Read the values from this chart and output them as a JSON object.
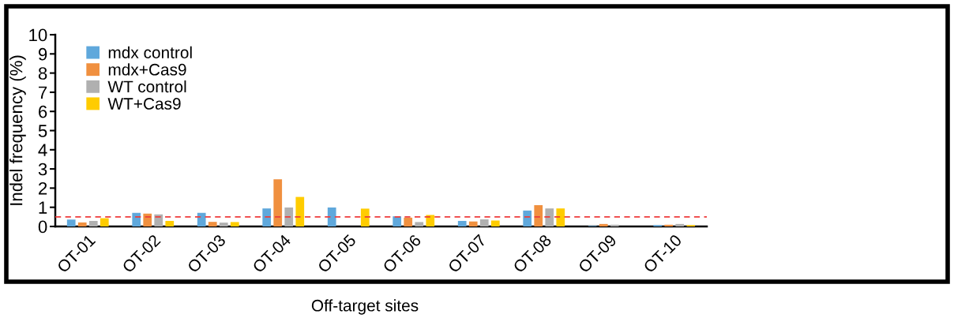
{
  "chart_data": {
    "type": "bar",
    "xlabel": "Off-target sites",
    "ylabel": "Indel frequency (%)",
    "categories": [
      "OT-01",
      "OT-02",
      "OT-03",
      "OT-04",
      "OT-05",
      "OT-06",
      "OT-07",
      "OT-08",
      "OT-09",
      "OT-10"
    ],
    "series": [
      {
        "name": "mdx control",
        "color": "#5fa8dc",
        "values": [
          0.36,
          0.71,
          0.71,
          0.94,
          0.99,
          0.53,
          0.29,
          0.83,
          0.03,
          0.07
        ]
      },
      {
        "name": "mdx+Cas9",
        "color": "#f0903f",
        "values": [
          0.21,
          0.67,
          0.24,
          2.46,
          0,
          0.46,
          0.26,
          1.11,
          0.13,
          0.09
        ]
      },
      {
        "name": "WT control",
        "color": "#b0b0b0",
        "values": [
          0.29,
          0.63,
          0.2,
          0.99,
          0,
          0.23,
          0.37,
          0.94,
          0.09,
          0.13
        ]
      },
      {
        "name": "WT+Cas9",
        "color": "#ffcc00",
        "values": [
          0.43,
          0.29,
          0.23,
          1.54,
          0.93,
          0.6,
          0.31,
          0.94,
          0,
          0.07
        ]
      }
    ],
    "ylim": [
      0,
      10
    ],
    "yticks": [
      0,
      1,
      2,
      3,
      4,
      5,
      6,
      7,
      8,
      9,
      10
    ],
    "ref_lines": [
      {
        "axis": "y",
        "value": 0.5,
        "color": "#ee3b3b",
        "line_style": "dashed"
      }
    ],
    "legend": "top left",
    "grid": false
  }
}
